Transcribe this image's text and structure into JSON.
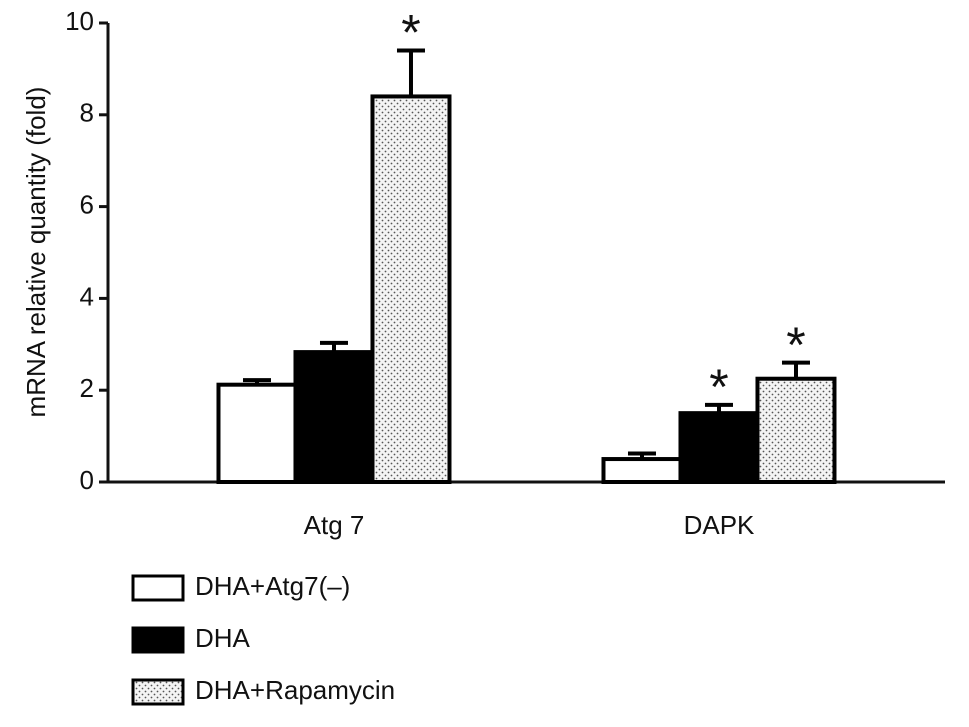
{
  "chart_data": {
    "type": "bar",
    "y_label": "mRNA relative quantity (fold)",
    "categories": [
      "Atg 7",
      "DAPK"
    ],
    "series": [
      {
        "name": "DHA+Atg7(–)",
        "color": "#ffffff",
        "values": [
          2.12,
          0.5
        ],
        "errors": [
          0.1,
          0.12
        ],
        "annotations": [
          null,
          null
        ]
      },
      {
        "name": "DHA",
        "color": "#000000",
        "values": [
          2.83,
          1.5
        ],
        "errors": [
          0.2,
          0.18
        ],
        "annotations": [
          null,
          "*"
        ]
      },
      {
        "name": "DHA+Rapamycin",
        "color": "dotted",
        "values": [
          8.4,
          2.25
        ],
        "errors": [
          1.0,
          0.35
        ],
        "annotations": [
          "*",
          "*"
        ]
      }
    ],
    "ylim": [
      0,
      10
    ],
    "yticks": [
      0,
      2,
      4,
      6,
      8,
      10
    ]
  }
}
